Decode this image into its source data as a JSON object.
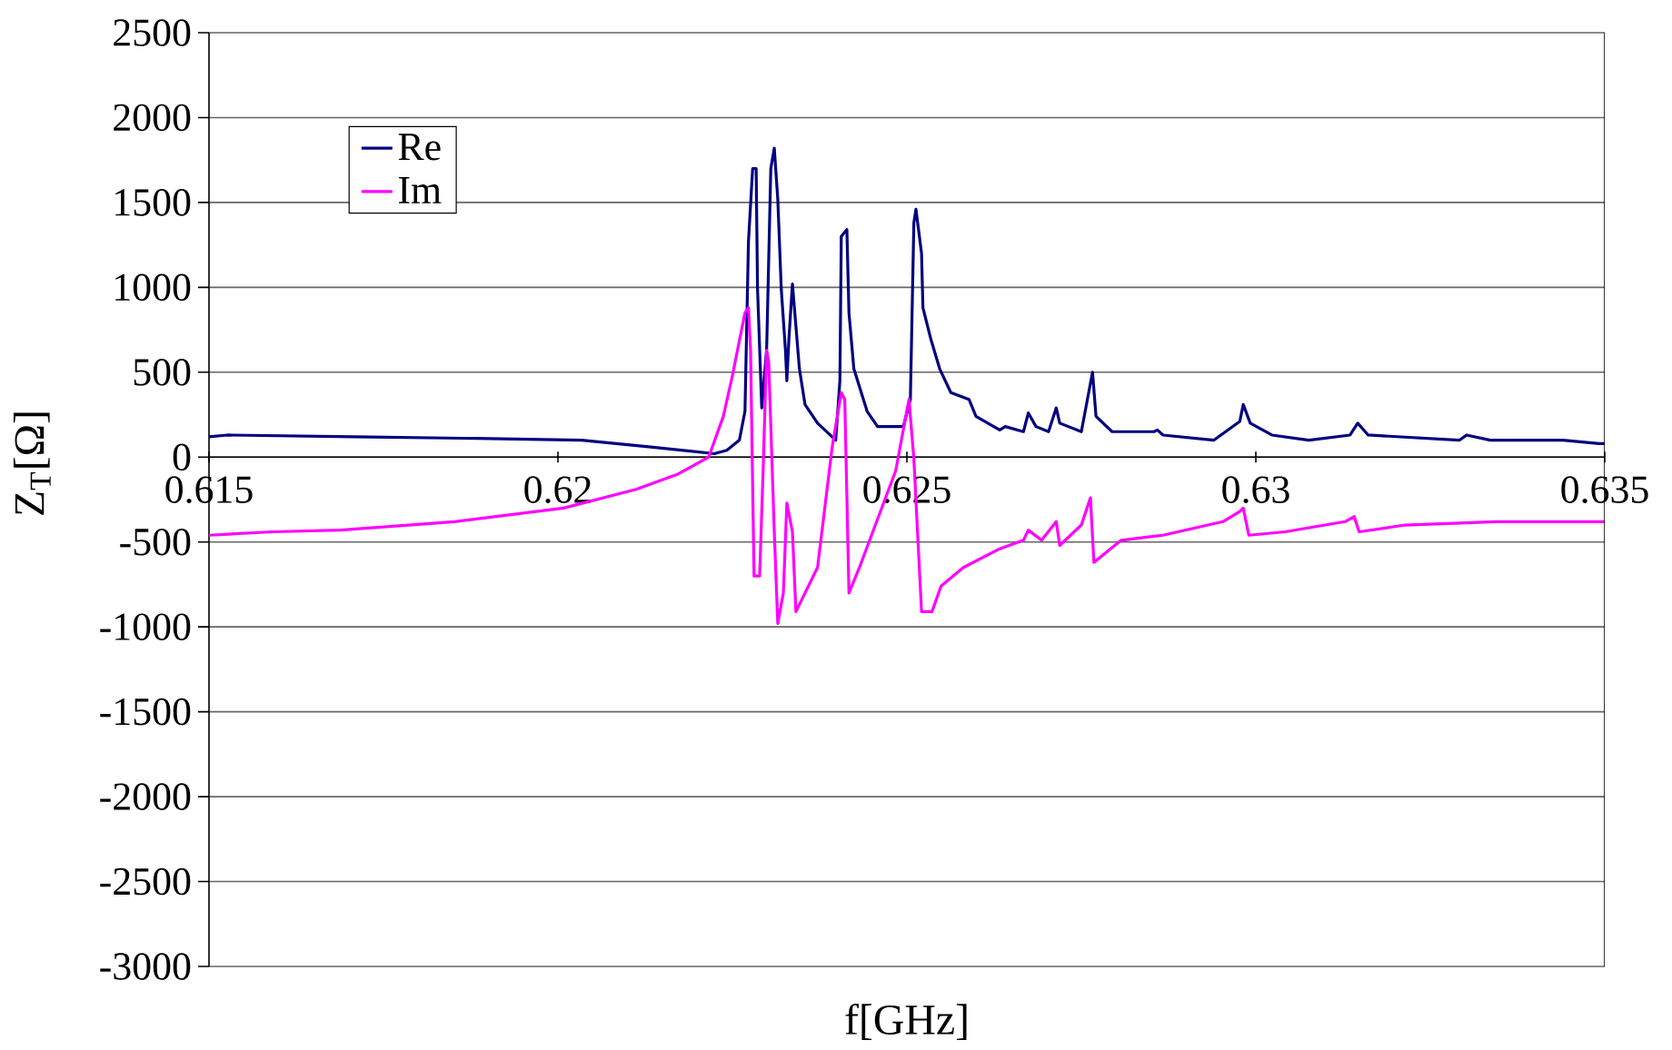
{
  "chart_data": {
    "type": "line",
    "xlabel": "f[GHz]",
    "ylabel": "Z$_{T}$[Ω]",
    "xlim": [
      0.615,
      0.635
    ],
    "xticks": [
      0.615,
      0.62,
      0.625,
      0.63,
      0.635
    ],
    "ylim": [
      -3000,
      2500
    ],
    "yticks": [
      -3000,
      -2500,
      -2000,
      -1500,
      -1000,
      -500,
      0,
      500,
      1000,
      1500,
      2000,
      2500
    ],
    "grid": "y",
    "legend": "top left",
    "marker": "none",
    "line_style": "solid",
    "series": [
      {
        "name": "Re",
        "color": "#000080",
        "x": [
          0.615,
          0.61526,
          0.61708,
          0.61883,
          0.62034,
          0.62133,
          0.62224,
          0.62242,
          0.6226,
          0.62268,
          0.62273,
          0.62279,
          0.62284,
          0.62286,
          0.62292,
          0.62299,
          0.62305,
          0.6231,
          0.62315,
          0.6232,
          0.62326,
          0.62328,
          0.62331,
          0.62336,
          0.62341,
          0.62346,
          0.62354,
          0.62372,
          0.62398,
          0.62404,
          0.62406,
          0.62414,
          0.62417,
          0.62424,
          0.62443,
          0.62458,
          0.62495,
          0.62505,
          0.6251,
          0.62513,
          0.62521,
          0.62523,
          0.62534,
          0.62547,
          0.62563,
          0.62589,
          0.62599,
          0.62633,
          0.62641,
          0.62667,
          0.62674,
          0.62685,
          0.62703,
          0.62714,
          0.62719,
          0.6275,
          0.62766,
          0.62771,
          0.62794,
          0.62854,
          0.62859,
          0.62867,
          0.6294,
          0.62977,
          0.62982,
          0.62992,
          0.63023,
          0.63076,
          0.63135,
          0.63146,
          0.63161,
          0.63292,
          0.63302,
          0.63336,
          0.6344,
          0.63492,
          0.635
        ],
        "values": [
          120,
          130,
          120,
          110,
          100,
          60,
          20,
          40,
          100,
          270,
          1270,
          1700,
          1700,
          990,
          290,
          630,
          1700,
          1820,
          1520,
          990,
          630,
          450,
          700,
          1020,
          770,
          520,
          310,
          200,
          100,
          450,
          1300,
          1340,
          850,
          520,
          270,
          180,
          180,
          340,
          1380,
          1460,
          1200,
          880,
          700,
          520,
          380,
          340,
          240,
          160,
          180,
          150,
          260,
          180,
          150,
          290,
          200,
          150,
          500,
          240,
          150,
          150,
          160,
          130,
          100,
          210,
          310,
          200,
          130,
          100,
          130,
          200,
          130,
          100,
          130,
          100,
          100,
          80,
          80
        ]
      },
      {
        "name": "Im",
        "color": "#ff00ff",
        "x": [
          0.615,
          0.61591,
          0.61688,
          0.61852,
          0.62008,
          0.62112,
          0.62172,
          0.62216,
          0.62237,
          0.6225,
          0.62268,
          0.62273,
          0.62276,
          0.62281,
          0.62289,
          0.62294,
          0.62299,
          0.62302,
          0.6231,
          0.62315,
          0.62323,
          0.62328,
          0.62336,
          0.62341,
          0.62372,
          0.62393,
          0.62406,
          0.62411,
          0.62417,
          0.62432,
          0.62484,
          0.62503,
          0.6251,
          0.62521,
          0.62536,
          0.62549,
          0.62581,
          0.62633,
          0.62667,
          0.62674,
          0.62693,
          0.62714,
          0.62719,
          0.6275,
          0.62763,
          0.62768,
          0.62807,
          0.62867,
          0.62953,
          0.62977,
          0.62982,
          0.6299,
          0.63042,
          0.63128,
          0.63141,
          0.63148,
          0.63214,
          0.63344,
          0.63492,
          0.635
        ],
        "values": [
          -460,
          -440,
          -430,
          -380,
          -300,
          -190,
          -100,
          0,
          240,
          480,
          850,
          880,
          630,
          -700,
          -700,
          -80,
          630,
          560,
          -440,
          -980,
          -800,
          -270,
          -440,
          -910,
          -650,
          60,
          380,
          340,
          -800,
          -650,
          -80,
          340,
          -10,
          -910,
          -910,
          -760,
          -650,
          -540,
          -490,
          -430,
          -490,
          -380,
          -520,
          -400,
          -240,
          -620,
          -490,
          -460,
          -380,
          -320,
          -300,
          -460,
          -440,
          -380,
          -350,
          -440,
          -400,
          -380,
          -380,
          -380
        ]
      }
    ]
  }
}
